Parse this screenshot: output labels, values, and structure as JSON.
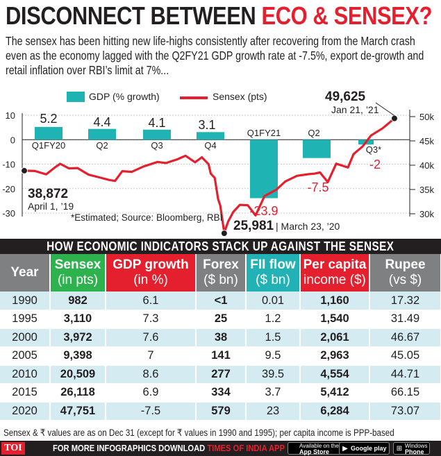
{
  "title": {
    "part1": "DISCONNECT BETWEEN ",
    "part2": "ECO & SENSEX?"
  },
  "subtitle": "The sensex has been hitting new life-highs consistently after recovering from the March crash even as the economy lagged with the Q2FY21 GDP growth rate at -7.5%, export de-growth and retail inflation over RBI’s limit at 7%...",
  "colors": {
    "gdp": "#1fb3b3",
    "sensex": "#e5202e",
    "header_green": "#2eb24e",
    "header_red": "#e5202e",
    "header_blue": "#1f95c9",
    "header_teal": "#22b2b5",
    "header_gray": "#7f8081",
    "row_tint": "#d4ebf2"
  },
  "chart_data": {
    "type": "bar+line",
    "legend": {
      "gdp": "GDP (% growth)",
      "sensex": "Sensex (pts)"
    },
    "gdp": {
      "categories": [
        "Q1FY20",
        "Q2",
        "Q3",
        "Q4",
        "Q1FY21",
        "Q2",
        "Q3*"
      ],
      "values": [
        5.2,
        4.4,
        4.1,
        3.1,
        -23.9,
        -7.5,
        -2
      ],
      "labels": [
        "5.2",
        "4.4",
        "4.1",
        "3.1",
        "-23.9",
        "-7.5",
        "-2"
      ],
      "ylim": [
        -30,
        10
      ],
      "yticks": [
        "10",
        "0",
        "-10",
        "-20",
        "-30"
      ]
    },
    "sensex": {
      "ylim": [
        30000,
        50000
      ],
      "yticks": [
        "50k",
        "45k",
        "40k",
        "35k",
        "30k"
      ],
      "points": [
        [
          "2019-04-01",
          38872
        ],
        [
          "2019-04-20",
          39100
        ],
        [
          "2019-05-10",
          37800
        ],
        [
          "2019-05-27",
          39700
        ],
        [
          "2019-06-04",
          40200
        ],
        [
          "2019-06-20",
          39300
        ],
        [
          "2019-07-05",
          39500
        ],
        [
          "2019-07-25",
          37800
        ],
        [
          "2019-08-15",
          37300
        ],
        [
          "2019-08-30",
          37000
        ],
        [
          "2019-09-10",
          37100
        ],
        [
          "2019-09-23",
          39000
        ],
        [
          "2019-10-10",
          38400
        ],
        [
          "2019-10-31",
          40100
        ],
        [
          "2019-11-25",
          40900
        ],
        [
          "2019-12-10",
          40400
        ],
        [
          "2019-12-30",
          41500
        ],
        [
          "2020-01-14",
          41900
        ],
        [
          "2020-01-31",
          40700
        ],
        [
          "2020-02-12",
          41500
        ],
        [
          "2020-02-24",
          40400
        ],
        [
          "2020-02-28",
          38300
        ],
        [
          "2020-03-06",
          37500
        ],
        [
          "2020-03-12",
          33000
        ],
        [
          "2020-03-16",
          31400
        ],
        [
          "2020-03-23",
          25981
        ],
        [
          "2020-03-30",
          28400
        ],
        [
          "2020-04-08",
          30000
        ],
        [
          "2020-04-20",
          31600
        ],
        [
          "2020-05-04",
          31700
        ],
        [
          "2020-05-18",
          30000
        ],
        [
          "2020-06-03",
          33800
        ],
        [
          "2020-06-24",
          34800
        ],
        [
          "2020-07-10",
          36600
        ],
        [
          "2020-07-31",
          37600
        ],
        [
          "2020-08-20",
          38200
        ],
        [
          "2020-08-31",
          38600
        ],
        [
          "2020-09-10",
          38800
        ],
        [
          "2020-09-24",
          36500
        ],
        [
          "2020-10-09",
          40500
        ],
        [
          "2020-10-30",
          39600
        ],
        [
          "2020-11-09",
          42600
        ],
        [
          "2020-11-25",
          43800
        ],
        [
          "2020-12-10",
          45900
        ],
        [
          "2020-12-31",
          47751
        ],
        [
          "2021-01-21",
          49625
        ]
      ]
    },
    "annotations": [
      {
        "value": "38,872",
        "date": "April 1, ’19"
      },
      {
        "value": "25,981",
        "date": "March 23, ’20"
      },
      {
        "value": "49,625",
        "date": "Jan 21, ’21"
      }
    ],
    "note": "*Estimated; Source: Bloomberg, RBI"
  },
  "table": {
    "heading": "HOW ECONOMIC INDICATORS STACK UP AGAINST THE SENSEX",
    "columns": [
      {
        "line1": "Year",
        "line2": ""
      },
      {
        "line1": "Sensex",
        "line2": "(in pts)"
      },
      {
        "line1": "GDP growth",
        "line2": "(in %)"
      },
      {
        "line1": "Forex",
        "line2": "($ bn)"
      },
      {
        "line1": "FII flow",
        "line2": "($ bn)"
      },
      {
        "line1": "Per capita",
        "line2": "income ($)"
      },
      {
        "line1": "Rupee",
        "line2": "(vs $)"
      }
    ],
    "rows": [
      [
        "1990",
        "982",
        "6.1",
        "<1",
        "0.01",
        "1,160",
        "17.32"
      ],
      [
        "1995",
        "3,110",
        "7.3",
        "25",
        "1.2",
        "1,540",
        "31.49"
      ],
      [
        "2000",
        "3,972",
        "7.6",
        "38",
        "1.5",
        "2,061",
        "46.67"
      ],
      [
        "2005",
        "9,398",
        "7",
        "141",
        "9.5",
        "2,963",
        "45.05"
      ],
      [
        "2010",
        "20,509",
        "8.6",
        "277",
        "39.5",
        "4,554",
        "44.71"
      ],
      [
        "2015",
        "26,118",
        "6.9",
        "334",
        "3.7",
        "5,412",
        "66.15"
      ],
      [
        "2020",
        "47,751",
        "-7.5",
        "579",
        "23",
        "6,284",
        "73.07"
      ]
    ]
  },
  "footnote": "Sensex & ₹ values are as on Dec 31 (except for ₹ values in  1990 and 1995); per capita income is PPP-based",
  "footer": {
    "logo": "TOI",
    "text_main": "FOR MORE  INFOGRAPHICS DOWNLOAD ",
    "text_app": "TIMES OF INDIA APP",
    "stores": [
      {
        "icon": "apple-icon",
        "small": "Available on the",
        "big": "App Store"
      },
      {
        "icon": "play-icon",
        "small": "",
        "big": "Google play"
      },
      {
        "icon": "windows-icon",
        "small": "Windows",
        "big": "Phone"
      }
    ]
  }
}
